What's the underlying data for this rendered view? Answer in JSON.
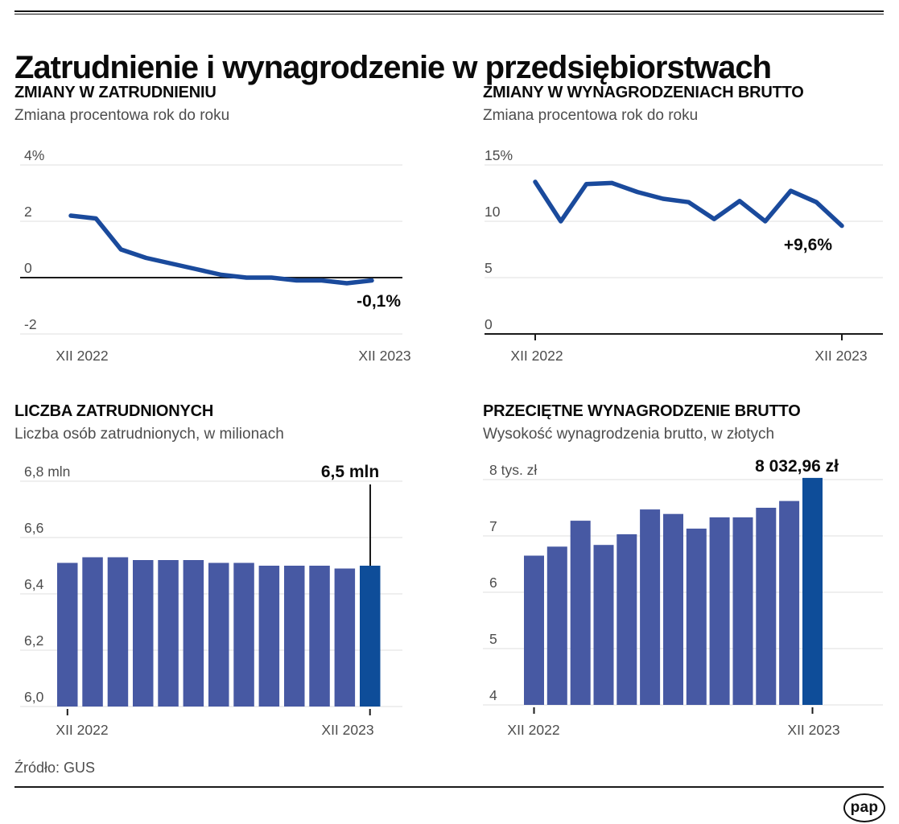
{
  "header": {
    "title": "Zatrudnienie i wynagrodzenie w przedsiębiorstwach"
  },
  "source": {
    "label": "Źródło: GUS"
  },
  "logo": {
    "text": "pap"
  },
  "colors": {
    "line": "#1a4a9c",
    "bar": "#4759a3",
    "bar_highlight": "#0e4d99",
    "grid": "#eaeaea",
    "axis": "#1a1a1a",
    "label": "#4d4d4d",
    "annotation": "#0b0b0b"
  },
  "chart_data": [
    {
      "id": "employment-change",
      "type": "line",
      "title": "ZMIANY W ZATRUDNIENIU",
      "subtitle": "Zmiana procentowa rok do roku",
      "x_axis": [
        "XII 2022",
        "XII 2023"
      ],
      "n_points": 13,
      "values": [
        2.2,
        2.1,
        1.0,
        0.7,
        0.5,
        0.3,
        0.1,
        0.0,
        0.0,
        -0.1,
        -0.1,
        -0.2,
        -0.1
      ],
      "y_ticks": [
        {
          "v": 4,
          "label": "4%"
        },
        {
          "v": 2,
          "label": "2"
        },
        {
          "v": 0,
          "label": "0"
        },
        {
          "v": -2,
          "label": "-2"
        }
      ],
      "ylim": [
        -2.6,
        4.6
      ],
      "grid": true,
      "annotation": "-0,1%"
    },
    {
      "id": "wages-change",
      "type": "line",
      "title": "ZMIANY W WYNAGRODZENIACH BRUTTO",
      "subtitle": "Zmiana procentowa rok do roku",
      "x_axis": [
        "XII 2022",
        "XII 2023"
      ],
      "n_points": 13,
      "values": [
        13.5,
        10.0,
        13.3,
        13.4,
        12.6,
        12.0,
        11.7,
        10.2,
        11.8,
        10.0,
        12.7,
        11.7,
        9.6
      ],
      "y_ticks": [
        {
          "v": 15,
          "label": "15%"
        },
        {
          "v": 10,
          "label": "10"
        },
        {
          "v": 5,
          "label": "5"
        },
        {
          "v": 0,
          "label": "0"
        }
      ],
      "ylim": [
        0,
        15.7
      ],
      "grid": true,
      "annotation": "+9,6%"
    },
    {
      "id": "employment-count",
      "type": "bar",
      "title": "LICZBA ZATRUDNIONYCH",
      "subtitle": "Liczba osób zatrudnionych, w milionach",
      "x_axis": [
        "XII 2022",
        "XII 2023"
      ],
      "n_points": 13,
      "values": [
        6.51,
        6.53,
        6.53,
        6.52,
        6.52,
        6.52,
        6.51,
        6.51,
        6.5,
        6.5,
        6.5,
        6.49,
        6.5
      ],
      "highlight_index": 12,
      "y_ticks": [
        {
          "v": 6.8,
          "label": "6,8 mln"
        },
        {
          "v": 6.6,
          "label": "6,6"
        },
        {
          "v": 6.4,
          "label": "6,4"
        },
        {
          "v": 6.2,
          "label": "6,2"
        },
        {
          "v": 6.0,
          "label": "6,0"
        }
      ],
      "ylim": [
        6.0,
        6.9
      ],
      "grid": true,
      "annotation": "6,5 mln"
    },
    {
      "id": "average-gross-wage",
      "type": "bar",
      "title": "PRZECIĘTNE WYNAGRODZENIE BRUTTO",
      "subtitle": "Wysokość wynagrodzenia brutto, w złotych",
      "x_axis": [
        "XII 2022",
        "XII 2023"
      ],
      "n_points": 13,
      "values": [
        6.65,
        6.81,
        7.27,
        6.84,
        7.03,
        7.47,
        7.39,
        7.13,
        7.33,
        7.33,
        7.5,
        7.62,
        8.03
      ],
      "highlight_index": 12,
      "y_ticks": [
        {
          "v": 8,
          "label": "8 tys. zł"
        },
        {
          "v": 7,
          "label": "7"
        },
        {
          "v": 6,
          "label": "6"
        },
        {
          "v": 5,
          "label": "5"
        },
        {
          "v": 4,
          "label": "4"
        }
      ],
      "ylim": [
        4,
        8.3
      ],
      "grid": true,
      "annotation": "8 032,96 zł"
    }
  ]
}
